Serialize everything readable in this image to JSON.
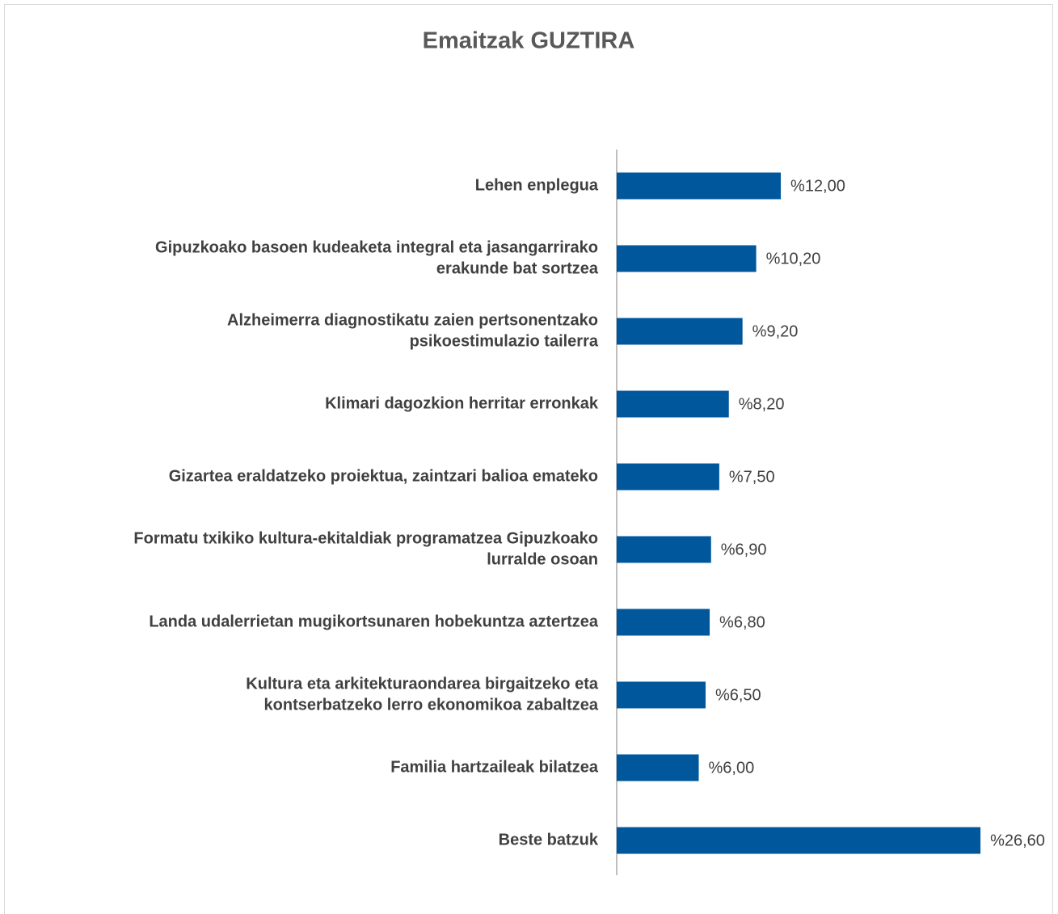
{
  "chart_data": {
    "type": "barh",
    "title": "Emaitzak GUZTIRA",
    "categories": [
      [
        "Lehen enplegua"
      ],
      [
        "Gipuzkoako basoen kudeaketa integral eta jasangarrirako",
        "erakunde bat sortzea"
      ],
      [
        "Alzheimerra diagnostikatu zaien pertsonentzako",
        "psikoestimulazio tailerra"
      ],
      [
        "Klimari dagozkion herritar erronkak"
      ],
      [
        "Gizartea eraldatzeko proiektua, zaintzari balioa emateko"
      ],
      [
        "Formatu txikiko kultura-ekitaldiak programatzea Gipuzkoako",
        "lurralde osoan"
      ],
      [
        "Landa udalerrietan mugikortsunaren hobekuntza aztertzea"
      ],
      [
        "Kultura eta arkitekturaondarea birgaitzeko eta",
        "kontserbatzeko lerro ekonomikoa zabaltzea"
      ],
      [
        "Familia hartzaileak bilatzea"
      ],
      [
        "Beste batzuk"
      ]
    ],
    "values": [
      12,
      10.2,
      9.2,
      8.2,
      7.5,
      6.9,
      6.8,
      6.5,
      6,
      26.6
    ],
    "value_labels": [
      "%12,00",
      "%10,20",
      "%9,20",
      "%8,20",
      "%7,50",
      "%6,90",
      "%6,80",
      "%6,50",
      "%6,00",
      "%26,60"
    ],
    "color": "#00579c",
    "xlim": [
      0,
      30
    ]
  }
}
